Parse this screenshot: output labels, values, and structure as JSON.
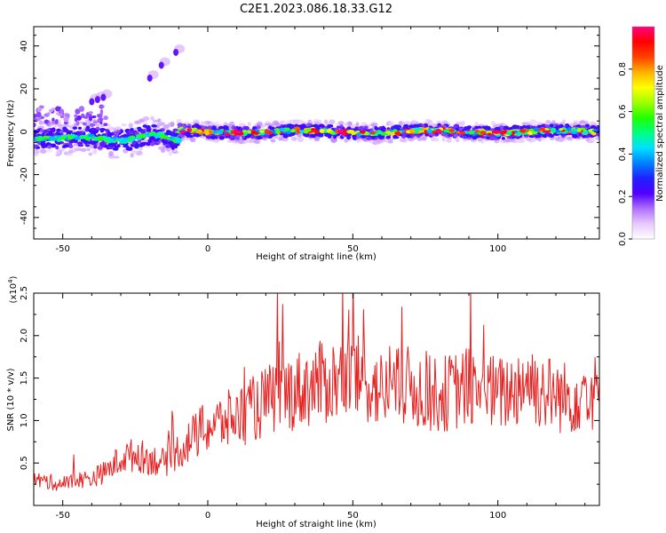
{
  "title": "C2E1.2023.086.18.33.G12",
  "chart_data": [
    {
      "type": "heatmap",
      "xlabel": "Height of straight line (km)",
      "ylabel": "Frequency (Hz)",
      "xlim": [
        -60,
        135
      ],
      "ylim": [
        -50,
        49
      ],
      "xticks": [
        -50,
        0,
        50,
        100
      ],
      "yticks": [
        -40,
        -20,
        0,
        20,
        40
      ],
      "grid": false,
      "colorbar": {
        "label": "Normalized spectral amplitude",
        "range": [
          0,
          1
        ],
        "ticks": [
          0.0,
          0.2,
          0.4,
          0.6,
          0.8
        ],
        "colormap": [
          "#ffffff",
          "#e8c8ff",
          "#b070ff",
          "#5000ff",
          "#2020ff",
          "#0080ff",
          "#00e0ff",
          "#00ff80",
          "#20ff00",
          "#a0ff00",
          "#ffff00",
          "#ffb000",
          "#ff4000",
          "#ff0000",
          "#ff0080"
        ]
      },
      "features": [
        {
          "name": "",
          "description": "main band",
          "x_range": [
            -60,
            135
          ],
          "freq_center": [
            0,
            -3
          ],
          "amplitude_range": [
            0.1,
            1.0
          ]
        },
        {
          "name": "",
          "description": "rising trace",
          "points": [
            [
              -40,
              14
            ],
            [
              -38,
              15
            ],
            [
              -36,
              16
            ],
            [
              -20,
              25
            ],
            [
              -16,
              31
            ],
            [
              -11,
              37
            ]
          ]
        }
      ]
    },
    {
      "type": "line",
      "xlabel": "Height of straight line (km)",
      "ylabel": "SNR (10 * v/v)",
      "yscale_label": "(x10",
      "yscale_exp": "4",
      "yscale_close": ")",
      "xlim": [
        -60,
        135
      ],
      "ylim": [
        0,
        2.5
      ],
      "xticks": [
        -50,
        0,
        50,
        100
      ],
      "yticks": [
        0.5,
        1.0,
        1.5,
        2.0,
        2.5
      ],
      "ytick_labels": [
        "0.5",
        "1.0",
        "1.5",
        "2.0",
        "2.5"
      ],
      "grid": false,
      "color": "#e82020",
      "series": [
        {
          "name": "",
          "x": [
            -60,
            -55,
            -50,
            -45,
            -40,
            -35,
            -30,
            -25,
            -20,
            -15,
            -10,
            -5,
            0,
            5,
            10,
            15,
            20,
            25,
            30,
            35,
            40,
            45,
            50,
            55,
            60,
            65,
            70,
            75,
            80,
            85,
            90,
            95,
            100,
            105,
            110,
            115,
            120,
            125,
            130,
            135
          ],
          "values": [
            0.3,
            0.28,
            0.25,
            0.3,
            0.32,
            0.4,
            0.55,
            0.6,
            0.55,
            0.5,
            0.65,
            0.8,
            0.92,
            0.98,
            1.05,
            1.12,
            1.22,
            1.3,
            1.35,
            1.4,
            1.45,
            1.48,
            1.5,
            1.45,
            1.35,
            1.38,
            1.4,
            1.32,
            1.3,
            1.35,
            1.4,
            1.38,
            1.3,
            1.35,
            1.5,
            1.35,
            1.3,
            1.25,
            1.4,
            1.3
          ]
        }
      ]
    }
  ]
}
